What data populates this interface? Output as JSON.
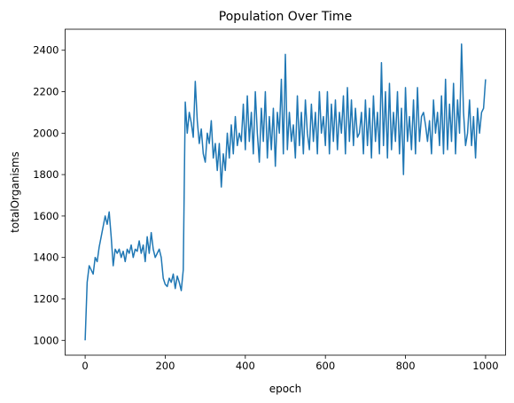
{
  "chart_data": {
    "type": "line",
    "title": "Population Over Time",
    "x_label": "epoch",
    "y_label": "totalOrganisms",
    "x": [
      0,
      5,
      10,
      15,
      20,
      25,
      30,
      35,
      40,
      45,
      50,
      55,
      60,
      65,
      70,
      75,
      80,
      85,
      90,
      95,
      100,
      105,
      110,
      115,
      120,
      125,
      130,
      135,
      140,
      145,
      150,
      155,
      160,
      165,
      170,
      175,
      180,
      185,
      190,
      195,
      200,
      205,
      210,
      215,
      220,
      225,
      230,
      235,
      240,
      245,
      250,
      255,
      260,
      265,
      270,
      275,
      280,
      285,
      290,
      295,
      300,
      305,
      310,
      315,
      320,
      325,
      330,
      335,
      340,
      345,
      350,
      355,
      360,
      365,
      370,
      375,
      380,
      385,
      390,
      395,
      400,
      405,
      410,
      415,
      420,
      425,
      430,
      435,
      440,
      445,
      450,
      455,
      460,
      465,
      470,
      475,
      480,
      485,
      490,
      495,
      500,
      505,
      510,
      515,
      520,
      525,
      530,
      535,
      540,
      545,
      550,
      555,
      560,
      565,
      570,
      575,
      580,
      585,
      590,
      595,
      600,
      605,
      610,
      615,
      620,
      625,
      630,
      635,
      640,
      645,
      650,
      655,
      660,
      665,
      670,
      675,
      680,
      685,
      690,
      695,
      700,
      705,
      710,
      715,
      720,
      725,
      730,
      735,
      740,
      745,
      750,
      755,
      760,
      765,
      770,
      775,
      780,
      785,
      790,
      795,
      800,
      805,
      810,
      815,
      820,
      825,
      830,
      835,
      840,
      845,
      850,
      855,
      860,
      865,
      870,
      875,
      880,
      885,
      890,
      895,
      900,
      905,
      910,
      915,
      920,
      925,
      930,
      935,
      940,
      945,
      950,
      955,
      960,
      965,
      970,
      975,
      980,
      985,
      990,
      995,
      1000
    ],
    "series": [
      {
        "name": "totalOrganisms",
        "color": "#1f77b4",
        "values": [
          1000,
          1280,
          1360,
          1340,
          1320,
          1400,
          1380,
          1450,
          1500,
          1550,
          1600,
          1560,
          1620,
          1500,
          1360,
          1440,
          1420,
          1440,
          1400,
          1430,
          1380,
          1440,
          1420,
          1460,
          1400,
          1440,
          1430,
          1480,
          1420,
          1460,
          1380,
          1500,
          1420,
          1520,
          1440,
          1400,
          1420,
          1440,
          1400,
          1300,
          1270,
          1260,
          1300,
          1280,
          1320,
          1250,
          1310,
          1280,
          1240,
          1340,
          2150,
          2000,
          2100,
          2050,
          1980,
          2250,
          2060,
          1950,
          2020,
          1900,
          1860,
          2000,
          1950,
          2060,
          1880,
          1950,
          1820,
          1950,
          1740,
          1900,
          1820,
          2000,
          1880,
          2040,
          1900,
          2080,
          1940,
          2000,
          1960,
          2140,
          1920,
          2180,
          1960,
          2100,
          1900,
          2200,
          2000,
          1860,
          2120,
          1960,
          2200,
          1880,
          2080,
          1920,
          2120,
          1840,
          2100,
          2000,
          2260,
          1900,
          2380,
          1920,
          2100,
          1960,
          2040,
          1880,
          2180,
          1940,
          2100,
          1900,
          2160,
          2000,
          1920,
          2140,
          1960,
          2100,
          1900,
          2200,
          2000,
          2080,
          1940,
          2200,
          1900,
          2140,
          1960,
          2160,
          1920,
          2100,
          2000,
          2180,
          1900,
          2220,
          1960,
          2160,
          1940,
          2120,
          1980,
          2000,
          2100,
          1900,
          2160,
          1940,
          2120,
          1880,
          2180,
          1960,
          2100,
          1900,
          2340,
          1940,
          2200,
          1880,
          2240,
          1920,
          2100,
          1960,
          2200,
          1900,
          2120,
          1800,
          2220,
          1960,
          2080,
          1920,
          2160,
          1900,
          2220,
          1960,
          2080,
          2100,
          2040,
          1960,
          2060,
          1900,
          2160,
          2000,
          2100,
          1940,
          2180,
          1900,
          2260,
          1920,
          2140,
          1960,
          2240,
          1900,
          2160,
          2000,
          2430,
          2100,
          1940,
          2000,
          2160,
          1940,
          2080,
          1880,
          2120,
          2000,
          2100,
          2120,
          2260
        ]
      }
    ],
    "xlim": [
      -50,
      1050
    ],
    "ylim": [
      928.5,
      2501.5
    ],
    "xticks": [
      0,
      200,
      400,
      600,
      800,
      1000
    ],
    "yticks": [
      1000,
      1200,
      1400,
      1600,
      1800,
      2000,
      2200,
      2400
    ],
    "grid": false
  }
}
